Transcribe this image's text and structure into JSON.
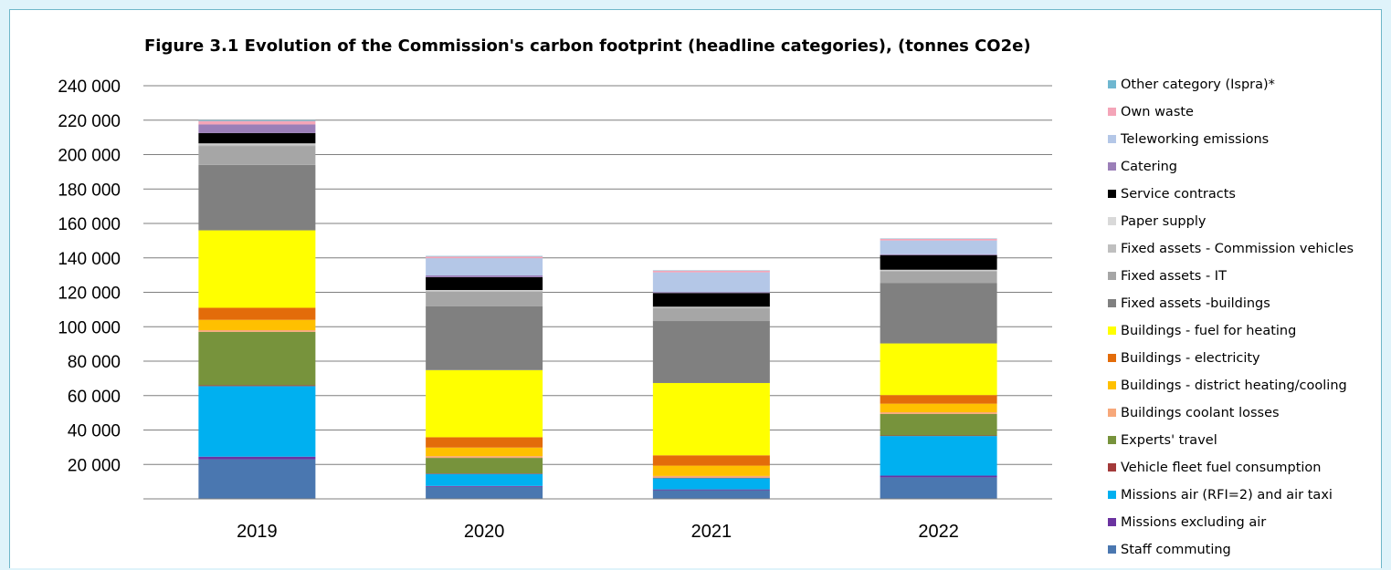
{
  "chart_data": {
    "type": "bar",
    "stacked": true,
    "title": "Figure 3.1 Evolution of the Commission's carbon footprint (headline categories), (tonnes CO2e)",
    "xlabel": "",
    "ylabel": "",
    "categories": [
      "2019",
      "2020",
      "2021",
      "2022"
    ],
    "ylim": [
      0,
      240000
    ],
    "y_ticks": [
      "20 000",
      "40 000",
      "60 000",
      "80 000",
      "100 000",
      "120 000",
      "140 000",
      "160 000",
      "180 000",
      "200 000",
      "220 000",
      "240 000"
    ],
    "y_tick_values": [
      20000,
      40000,
      60000,
      80000,
      100000,
      120000,
      140000,
      160000,
      180000,
      200000,
      220000,
      240000
    ],
    "grid": true,
    "legend_position": "right",
    "series": [
      {
        "name": "Staff commuting",
        "color": "#4a77b0",
        "values": [
          23000,
          7000,
          5000,
          12500
        ]
      },
      {
        "name": "Missions excluding air",
        "color": "#6b33a0",
        "values": [
          1500,
          500,
          500,
          1000
        ]
      },
      {
        "name": "Missions air (RFI=2) and air taxi",
        "color": "#00b0f0",
        "values": [
          41000,
          7000,
          6500,
          23000
        ]
      },
      {
        "name": "Vehicle fleet fuel consumption",
        "color": "#a33a3a",
        "values": [
          500,
          300,
          300,
          300
        ]
      },
      {
        "name": "Experts' travel",
        "color": "#77933c",
        "values": [
          31000,
          9000,
          0,
          12500
        ]
      },
      {
        "name": "Buildings coolant losses",
        "color": "#f7a87a",
        "values": [
          1000,
          1000,
          1000,
          1000
        ]
      },
      {
        "name": "Buildings - district heating/cooling",
        "color": "#ffc000",
        "values": [
          6000,
          5000,
          6000,
          5000
        ]
      },
      {
        "name": "Buildings - electricity",
        "color": "#e36c0a",
        "values": [
          7000,
          6000,
          6000,
          5000
        ]
      },
      {
        "name": "Buildings - fuel for heating",
        "color": "#ffff00",
        "values": [
          45000,
          39000,
          42000,
          30000
        ]
      },
      {
        "name": "Fixed assets -buildings",
        "color": "#808080",
        "values": [
          38000,
          37000,
          36000,
          35000
        ]
      },
      {
        "name": "Fixed assets - IT",
        "color": "#a6a6a6",
        "values": [
          11000,
          8500,
          7500,
          7000
        ]
      },
      {
        "name": "Fixed assets - Commission vehicles",
        "color": "#bfbfbf",
        "values": [
          1000,
          500,
          500,
          500
        ]
      },
      {
        "name": "Paper supply",
        "color": "#d9d9d9",
        "values": [
          500,
          500,
          300,
          300
        ]
      },
      {
        "name": "Service contracts",
        "color": "#000000",
        "values": [
          6000,
          7500,
          8000,
          8500
        ]
      },
      {
        "name": "Catering",
        "color": "#9b7fb8",
        "values": [
          5000,
          1000,
          500,
          500
        ]
      },
      {
        "name": "Teleworking emissions",
        "color": "#b4c7e7",
        "values": [
          0,
          10000,
          11500,
          8000
        ]
      },
      {
        "name": "Own waste",
        "color": "#f4a5b8",
        "values": [
          2000,
          1000,
          1000,
          1000
        ]
      },
      {
        "name": "Other category (Ispra)*",
        "color": "#6fb7d0",
        "values": [
          500,
          300,
          200,
          200
        ]
      }
    ]
  }
}
